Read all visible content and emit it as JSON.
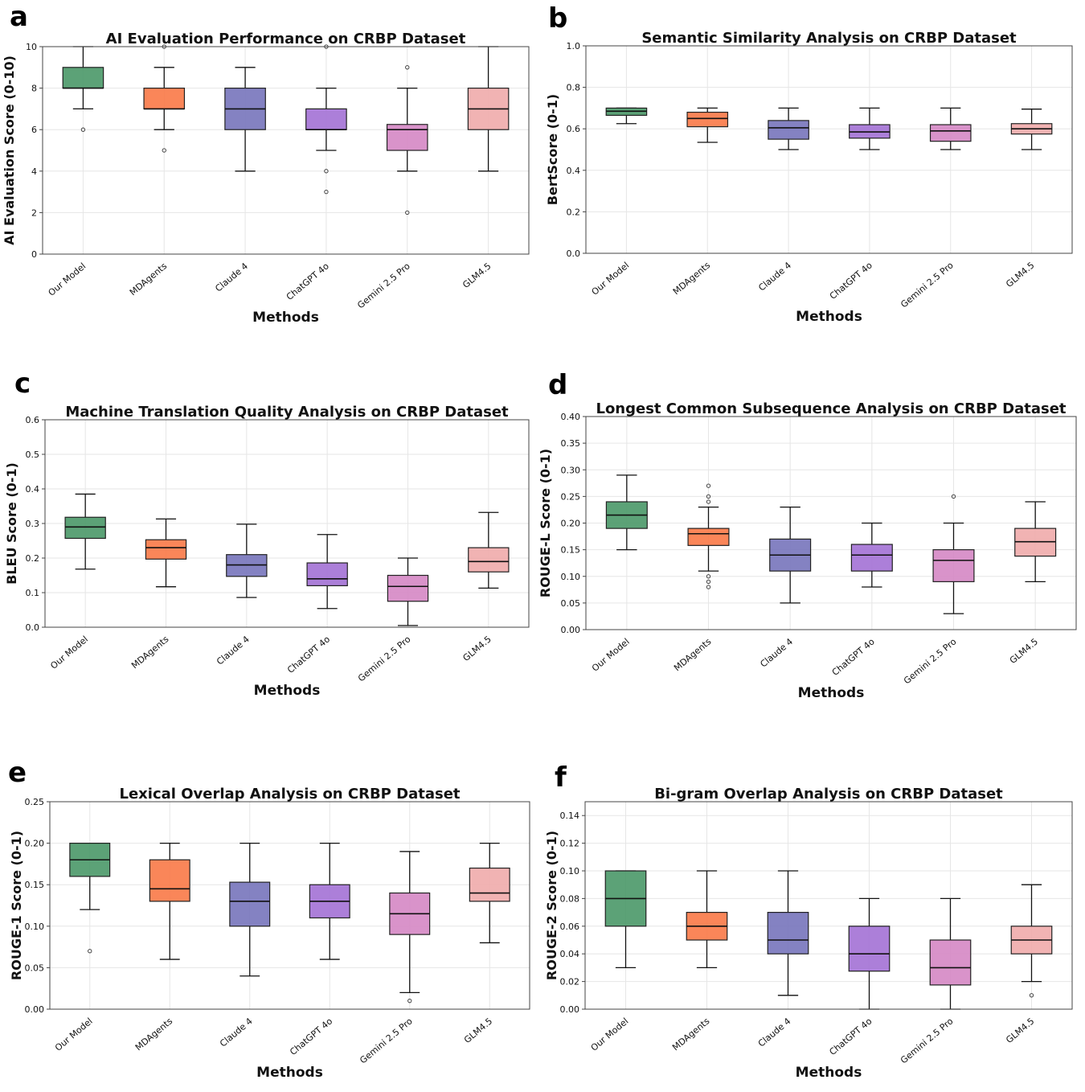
{
  "colors": [
    "#4e9a6b",
    "#fa7c4b",
    "#7a77bd",
    "#a574d6",
    "#d68ac6",
    "#f0adad"
  ],
  "chart_data": [
    {
      "letter": "a",
      "type": "box",
      "title": "AI Evaluation Performance on CRBP Dataset",
      "xlabel": "Methods",
      "ylabel": "AI Evaluation Score (0-10)",
      "ylim": [
        0,
        10
      ],
      "yticks": [
        "0",
        "2",
        "4",
        "6",
        "8",
        "10"
      ],
      "categories": [
        "Our Model",
        "MDAgents",
        "Claude 4",
        "ChatGPT 4o",
        "Gemini 2.5 Pro",
        "GLM4.5"
      ],
      "boxes": [
        {
          "whislo": 7,
          "q1": 8,
          "med": 8,
          "q3": 9,
          "whishi": 10,
          "fliers": [
            6
          ]
        },
        {
          "whislo": 6,
          "q1": 7,
          "med": 7,
          "q3": 8,
          "whishi": 9,
          "fliers": [
            5,
            10
          ]
        },
        {
          "whislo": 4,
          "q1": 6,
          "med": 7,
          "q3": 8,
          "whishi": 9,
          "fliers": []
        },
        {
          "whislo": 5,
          "q1": 6,
          "med": 6,
          "q3": 7,
          "whishi": 8,
          "fliers": [
            4,
            3,
            10
          ]
        },
        {
          "whislo": 4,
          "q1": 5,
          "med": 6,
          "q3": 6.25,
          "whishi": 8,
          "fliers": [
            9,
            2
          ]
        },
        {
          "whislo": 4,
          "q1": 6,
          "med": 7,
          "q3": 8,
          "whishi": 10,
          "fliers": []
        }
      ],
      "grid": true
    },
    {
      "letter": "b",
      "type": "box",
      "title": "Semantic Similarity Analysis on CRBP Dataset",
      "xlabel": "Methods",
      "ylabel": "BertScore (0-1)",
      "ylim": [
        0,
        1.0
      ],
      "yticks": [
        "0.0",
        "0.2",
        "0.4",
        "0.6",
        "0.8",
        "1.0"
      ],
      "categories": [
        "Our Model",
        "MDAgents",
        "Claude 4",
        "ChatGPT 4o",
        "Gemini 2.5 Pro",
        "GLM4.5"
      ],
      "boxes": [
        {
          "whislo": 0.625,
          "q1": 0.665,
          "med": 0.685,
          "q3": 0.7,
          "whishi": 0.7,
          "fliers": []
        },
        {
          "whislo": 0.535,
          "q1": 0.61,
          "med": 0.65,
          "q3": 0.68,
          "whishi": 0.7,
          "fliers": []
        },
        {
          "whislo": 0.5,
          "q1": 0.55,
          "med": 0.605,
          "q3": 0.64,
          "whishi": 0.7,
          "fliers": []
        },
        {
          "whislo": 0.5,
          "q1": 0.555,
          "med": 0.585,
          "q3": 0.62,
          "whishi": 0.7,
          "fliers": []
        },
        {
          "whislo": 0.5,
          "q1": 0.54,
          "med": 0.59,
          "q3": 0.62,
          "whishi": 0.7,
          "fliers": []
        },
        {
          "whislo": 0.5,
          "q1": 0.575,
          "med": 0.6,
          "q3": 0.625,
          "whishi": 0.695,
          "fliers": []
        }
      ],
      "grid": true
    },
    {
      "letter": "c",
      "type": "box",
      "title": "Machine Translation Quality Analysis on CRBP Dataset",
      "xlabel": "Methods",
      "ylabel": "BLEU Score (0-1)",
      "ylim": [
        0,
        0.6
      ],
      "yticks": [
        "0.0",
        "0.1",
        "0.2",
        "0.3",
        "0.4",
        "0.5",
        "0.6"
      ],
      "categories": [
        "Our Model",
        "MDAgents",
        "Claude 4",
        "ChatGPT 4o",
        "Gemini 2.5 Pro",
        "GLM4.5"
      ],
      "boxes": [
        {
          "whislo": 0.168,
          "q1": 0.257,
          "med": 0.29,
          "q3": 0.318,
          "whishi": 0.385,
          "fliers": []
        },
        {
          "whislo": 0.117,
          "q1": 0.197,
          "med": 0.23,
          "q3": 0.253,
          "whishi": 0.313,
          "fliers": []
        },
        {
          "whislo": 0.086,
          "q1": 0.147,
          "med": 0.18,
          "q3": 0.21,
          "whishi": 0.298,
          "fliers": []
        },
        {
          "whislo": 0.054,
          "q1": 0.12,
          "med": 0.14,
          "q3": 0.186,
          "whishi": 0.268,
          "fliers": []
        },
        {
          "whislo": 0.005,
          "q1": 0.075,
          "med": 0.118,
          "q3": 0.15,
          "whishi": 0.2,
          "fliers": []
        },
        {
          "whislo": 0.113,
          "q1": 0.16,
          "med": 0.19,
          "q3": 0.23,
          "whishi": 0.332,
          "fliers": []
        }
      ],
      "grid": true
    },
    {
      "letter": "d",
      "type": "box",
      "title": "Longest Common Subsequence Analysis on CRBP Dataset",
      "xlabel": "Methods",
      "ylabel": "ROUGE-L Score (0-1)",
      "ylim": [
        0,
        0.4
      ],
      "yticks": [
        "0.00",
        "0.05",
        "0.10",
        "0.15",
        "0.20",
        "0.25",
        "0.30",
        "0.35",
        "0.40"
      ],
      "categories": [
        "Our Model",
        "MDAgents",
        "Claude 4",
        "ChatGPT 4o",
        "Gemini 2.5 Pro",
        "GLM4.5"
      ],
      "boxes": [
        {
          "whislo": 0.15,
          "q1": 0.19,
          "med": 0.215,
          "q3": 0.24,
          "whishi": 0.29,
          "fliers": []
        },
        {
          "whislo": 0.11,
          "q1": 0.158,
          "med": 0.18,
          "q3": 0.19,
          "whishi": 0.23,
          "fliers": [
            0.27,
            0.25,
            0.24,
            0.1,
            0.09,
            0.08
          ]
        },
        {
          "whislo": 0.05,
          "q1": 0.11,
          "med": 0.14,
          "q3": 0.17,
          "whishi": 0.23,
          "fliers": []
        },
        {
          "whislo": 0.08,
          "q1": 0.11,
          "med": 0.14,
          "q3": 0.16,
          "whishi": 0.2,
          "fliers": []
        },
        {
          "whislo": 0.03,
          "q1": 0.09,
          "med": 0.13,
          "q3": 0.15,
          "whishi": 0.2,
          "fliers": [
            0.25
          ]
        },
        {
          "whislo": 0.09,
          "q1": 0.138,
          "med": 0.165,
          "q3": 0.19,
          "whishi": 0.24,
          "fliers": []
        }
      ],
      "grid": true
    },
    {
      "letter": "e",
      "type": "box",
      "title": "Lexical Overlap Analysis on CRBP Dataset",
      "xlabel": "Methods",
      "ylabel": "ROUGE-1 Score (0-1)",
      "ylim": [
        0,
        0.25
      ],
      "yticks": [
        "0.00",
        "0.05",
        "0.10",
        "0.15",
        "0.20",
        "0.25"
      ],
      "categories": [
        "Our Model",
        "MDAgents",
        "Claude 4",
        "ChatGPT 4o",
        "Gemini 2.5 Pro",
        "GLM4.5"
      ],
      "boxes": [
        {
          "whislo": 0.12,
          "q1": 0.16,
          "med": 0.18,
          "q3": 0.2,
          "whishi": 0.2,
          "fliers": [
            0.07
          ]
        },
        {
          "whislo": 0.06,
          "q1": 0.13,
          "med": 0.145,
          "q3": 0.18,
          "whishi": 0.2,
          "fliers": []
        },
        {
          "whislo": 0.04,
          "q1": 0.1,
          "med": 0.13,
          "q3": 0.153,
          "whishi": 0.2,
          "fliers": []
        },
        {
          "whislo": 0.06,
          "q1": 0.11,
          "med": 0.13,
          "q3": 0.15,
          "whishi": 0.2,
          "fliers": []
        },
        {
          "whislo": 0.02,
          "q1": 0.09,
          "med": 0.115,
          "q3": 0.14,
          "whishi": 0.19,
          "fliers": [
            0.01
          ]
        },
        {
          "whislo": 0.08,
          "q1": 0.13,
          "med": 0.14,
          "q3": 0.17,
          "whishi": 0.2,
          "fliers": []
        }
      ],
      "grid": true
    },
    {
      "letter": "f",
      "type": "box",
      "title": "Bi-gram Overlap Analysis on CRBP Dataset",
      "xlabel": "Methods",
      "ylabel": "ROUGE-2 Score (0-1)",
      "ylim": [
        0,
        0.15
      ],
      "yticks": [
        "0.00",
        "0.02",
        "0.04",
        "0.06",
        "0.08",
        "0.10",
        "0.12",
        "0.14"
      ],
      "categories": [
        "Our Model",
        "MDAgents",
        "Claude 4",
        "ChatGPT 4o",
        "Gemini 2.5 Pro",
        "GLM4.5"
      ],
      "boxes": [
        {
          "whislo": 0.03,
          "q1": 0.06,
          "med": 0.08,
          "q3": 0.1,
          "whishi": 0.1,
          "fliers": []
        },
        {
          "whislo": 0.03,
          "q1": 0.05,
          "med": 0.06,
          "q3": 0.07,
          "whishi": 0.1,
          "fliers": []
        },
        {
          "whislo": 0.01,
          "q1": 0.04,
          "med": 0.05,
          "q3": 0.07,
          "whishi": 0.1,
          "fliers": []
        },
        {
          "whislo": 0.0,
          "q1": 0.0275,
          "med": 0.04,
          "q3": 0.06,
          "whishi": 0.08,
          "fliers": []
        },
        {
          "whislo": 0.0,
          "q1": 0.0175,
          "med": 0.03,
          "q3": 0.05,
          "whishi": 0.08,
          "fliers": []
        },
        {
          "whislo": 0.02,
          "q1": 0.04,
          "med": 0.05,
          "q3": 0.06,
          "whishi": 0.09,
          "fliers": [
            0.01
          ]
        }
      ],
      "grid": true
    }
  ]
}
